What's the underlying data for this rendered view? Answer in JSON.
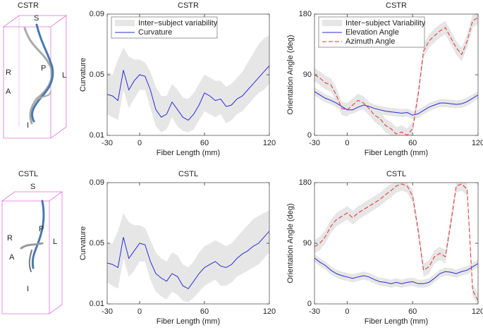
{
  "renderings": [
    {
      "title": "CSTR",
      "labels": [
        "S",
        "R",
        "P",
        "L",
        "A",
        "I"
      ]
    },
    {
      "title": "CSTL",
      "labels": [
        "S",
        "R",
        "P",
        "L",
        "A",
        "I"
      ]
    }
  ],
  "chart_data": [
    {
      "type": "line",
      "title": "CSTR",
      "xlabel": "Fiber Length (mm)",
      "ylabel": "Curvature",
      "x": [
        -30,
        -25,
        -20,
        -15,
        -10,
        -5,
        0,
        5,
        10,
        15,
        20,
        25,
        30,
        35,
        40,
        45,
        50,
        55,
        60,
        65,
        70,
        75,
        80,
        85,
        90,
        95,
        100,
        105,
        110,
        115,
        120
      ],
      "xlim": [
        -30,
        120
      ],
      "xticks": [
        -30,
        0,
        60,
        120
      ],
      "ylim": [
        0.01,
        0.09
      ],
      "yticks": [
        0.01,
        0.05,
        0.09
      ],
      "legend": "upper left",
      "band": {
        "name": "Inter−subject variability",
        "color": "#e6e6e6"
      },
      "series": [
        {
          "name": "Curvature",
          "color": "#2b2bd6",
          "dashed": false,
          "values": [
            0.037,
            0.036,
            0.033,
            0.053,
            0.04,
            0.046,
            0.05,
            0.049,
            0.04,
            0.027,
            0.022,
            0.024,
            0.032,
            0.027,
            0.022,
            0.02,
            0.024,
            0.03,
            0.038,
            0.036,
            0.033,
            0.034,
            0.029,
            0.03,
            0.034,
            0.036,
            0.04,
            0.044,
            0.048,
            0.052,
            0.056
          ],
          "upper": [
            0.052,
            0.05,
            0.06,
            0.068,
            0.062,
            0.06,
            0.06,
            0.058,
            0.052,
            0.042,
            0.036,
            0.036,
            0.044,
            0.04,
            0.035,
            0.034,
            0.038,
            0.044,
            0.05,
            0.048,
            0.046,
            0.046,
            0.042,
            0.044,
            0.048,
            0.052,
            0.058,
            0.064,
            0.07,
            0.074,
            0.076
          ],
          "lower": [
            0.024,
            0.022,
            0.02,
            0.04,
            0.028,
            0.034,
            0.04,
            0.04,
            0.028,
            0.016,
            0.012,
            0.014,
            0.022,
            0.016,
            0.013,
            0.012,
            0.014,
            0.02,
            0.026,
            0.024,
            0.022,
            0.024,
            0.018,
            0.02,
            0.024,
            0.026,
            0.03,
            0.034,
            0.038,
            0.04,
            0.044
          ]
        }
      ]
    },
    {
      "type": "line",
      "title": "CSTR",
      "xlabel": "Fiber Length (mm)",
      "ylabel": "Orientation Angle (deg)",
      "x": [
        -30,
        -25,
        -20,
        -15,
        -10,
        -5,
        0,
        5,
        10,
        15,
        20,
        25,
        30,
        35,
        40,
        45,
        50,
        55,
        60,
        65,
        70,
        75,
        80,
        85,
        90,
        95,
        100,
        105,
        110,
        115,
        120
      ],
      "xlim": [
        -30,
        120
      ],
      "xticks": [
        -30,
        0,
        60,
        120
      ],
      "ylim": [
        0,
        180
      ],
      "yticks": [
        0,
        90,
        180
      ],
      "legend": "upper left",
      "band": {
        "name": "Inter−subject Variability",
        "color": "#e6e6e6"
      },
      "series": [
        {
          "name": "Elevation Angle",
          "color": "#2b2bd6",
          "dashed": false,
          "values": [
            65,
            60,
            55,
            52,
            48,
            43,
            38,
            38,
            42,
            45,
            43,
            40,
            38,
            36,
            35,
            34,
            33,
            34,
            30,
            32,
            37,
            42,
            45,
            48,
            48,
            47,
            46,
            47,
            50,
            55,
            60
          ],
          "upper": [
            71,
            66,
            61,
            58,
            54,
            49,
            44,
            44,
            48,
            51,
            49,
            46,
            44,
            42,
            41,
            40,
            39,
            40,
            36,
            38,
            43,
            48,
            51,
            54,
            54,
            53,
            52,
            53,
            56,
            61,
            66
          ],
          "lower": [
            59,
            54,
            49,
            46,
            42,
            37,
            32,
            32,
            36,
            39,
            37,
            34,
            32,
            30,
            29,
            28,
            27,
            28,
            24,
            26,
            31,
            36,
            39,
            42,
            42,
            41,
            40,
            41,
            44,
            49,
            54
          ]
        },
        {
          "name": "Azimuth Angle",
          "color": "#e03030",
          "dashed": true,
          "values": [
            90,
            85,
            78,
            75,
            60,
            40,
            38,
            45,
            52,
            48,
            40,
            30,
            25,
            15,
            10,
            2,
            5,
            0,
            10,
            60,
            125,
            140,
            148,
            155,
            160,
            145,
            130,
            120,
            140,
            170,
            175
          ],
          "upper": [
            100,
            95,
            88,
            85,
            70,
            50,
            48,
            55,
            62,
            58,
            50,
            40,
            35,
            25,
            20,
            12,
            15,
            10,
            20,
            70,
            135,
            150,
            158,
            165,
            170,
            155,
            140,
            130,
            150,
            180,
            180
          ],
          "lower": [
            80,
            75,
            68,
            65,
            50,
            30,
            28,
            35,
            42,
            38,
            30,
            20,
            15,
            5,
            0,
            0,
            0,
            0,
            0,
            50,
            115,
            130,
            138,
            145,
            150,
            135,
            120,
            110,
            130,
            160,
            165
          ]
        }
      ]
    },
    {
      "type": "line",
      "title": "CSTL",
      "xlabel": "Fiber Length (mm)",
      "ylabel": "Curvature",
      "x": [
        -30,
        -25,
        -20,
        -15,
        -10,
        -5,
        0,
        5,
        10,
        15,
        20,
        25,
        30,
        35,
        40,
        45,
        50,
        55,
        60,
        65,
        70,
        75,
        80,
        85,
        90,
        95,
        100,
        105,
        110,
        115,
        120
      ],
      "xlim": [
        -30,
        120
      ],
      "xticks": [
        -30,
        0,
        60,
        120
      ],
      "ylim": [
        0.01,
        0.09
      ],
      "yticks": [
        0.01,
        0.05,
        0.09
      ],
      "band": {
        "color": "#e6e6e6"
      },
      "series": [
        {
          "color": "#2b2bd6",
          "dashed": false,
          "values": [
            0.037,
            0.036,
            0.034,
            0.054,
            0.04,
            0.045,
            0.05,
            0.049,
            0.038,
            0.03,
            0.027,
            0.025,
            0.03,
            0.028,
            0.022,
            0.02,
            0.025,
            0.03,
            0.034,
            0.036,
            0.038,
            0.035,
            0.034,
            0.036,
            0.04,
            0.043,
            0.045,
            0.048,
            0.05,
            0.054,
            0.058
          ],
          "upper": [
            0.05,
            0.05,
            0.058,
            0.07,
            0.064,
            0.062,
            0.062,
            0.06,
            0.052,
            0.044,
            0.04,
            0.038,
            0.044,
            0.042,
            0.036,
            0.034,
            0.038,
            0.044,
            0.048,
            0.05,
            0.052,
            0.05,
            0.048,
            0.05,
            0.054,
            0.058,
            0.062,
            0.066,
            0.068,
            0.07,
            0.072
          ],
          "lower": [
            0.024,
            0.022,
            0.02,
            0.04,
            0.028,
            0.032,
            0.038,
            0.038,
            0.026,
            0.018,
            0.015,
            0.013,
            0.018,
            0.016,
            0.012,
            0.011,
            0.014,
            0.018,
            0.022,
            0.024,
            0.026,
            0.022,
            0.022,
            0.024,
            0.028,
            0.03,
            0.032,
            0.034,
            0.036,
            0.04,
            0.044
          ]
        }
      ]
    },
    {
      "type": "line",
      "title": "CSTL",
      "xlabel": "Fiber Length (mm)",
      "ylabel": "Orientation Angle (deg)",
      "x": [
        -30,
        -25,
        -20,
        -15,
        -10,
        -5,
        0,
        5,
        10,
        15,
        20,
        25,
        30,
        35,
        40,
        45,
        50,
        55,
        60,
        65,
        70,
        75,
        80,
        85,
        90,
        95,
        100,
        105,
        110,
        115,
        120
      ],
      "xlim": [
        -30,
        120
      ],
      "xticks": [
        -30,
        0,
        60,
        120
      ],
      "ylim": [
        0,
        180
      ],
      "yticks": [
        0,
        90,
        180
      ],
      "band": {
        "color": "#e6e6e6"
      },
      "series": [
        {
          "color": "#2b2bd6",
          "dashed": false,
          "values": [
            68,
            62,
            57,
            50,
            45,
            42,
            40,
            38,
            40,
            42,
            40,
            36,
            33,
            32,
            30,
            32,
            30,
            32,
            33,
            30,
            30,
            32,
            38,
            45,
            48,
            47,
            45,
            48,
            50,
            55,
            60
          ],
          "upper": [
            74,
            68,
            63,
            56,
            51,
            48,
            46,
            44,
            46,
            48,
            46,
            42,
            39,
            38,
            36,
            38,
            36,
            38,
            39,
            36,
            36,
            38,
            44,
            51,
            54,
            53,
            51,
            54,
            56,
            61,
            66
          ],
          "lower": [
            62,
            56,
            51,
            44,
            39,
            36,
            34,
            32,
            34,
            36,
            34,
            30,
            27,
            26,
            24,
            26,
            24,
            26,
            27,
            24,
            24,
            26,
            32,
            39,
            42,
            41,
            39,
            42,
            44,
            49,
            54
          ]
        },
        {
          "color": "#e03030",
          "dashed": true,
          "values": [
            85,
            90,
            100,
            115,
            125,
            130,
            135,
            128,
            135,
            140,
            145,
            150,
            155,
            162,
            168,
            175,
            178,
            175,
            160,
            110,
            50,
            55,
            70,
            75,
            70,
            120,
            175,
            178,
            170,
            20,
            5
          ],
          "upper": [
            95,
            100,
            110,
            125,
            135,
            140,
            145,
            138,
            145,
            150,
            155,
            160,
            165,
            172,
            178,
            180,
            180,
            180,
            170,
            120,
            60,
            65,
            80,
            85,
            80,
            130,
            180,
            180,
            180,
            30,
            15
          ],
          "lower": [
            75,
            80,
            90,
            105,
            115,
            120,
            125,
            118,
            125,
            130,
            135,
            140,
            145,
            152,
            158,
            165,
            168,
            165,
            150,
            100,
            40,
            45,
            60,
            65,
            60,
            110,
            165,
            168,
            160,
            10,
            0
          ]
        }
      ]
    }
  ]
}
